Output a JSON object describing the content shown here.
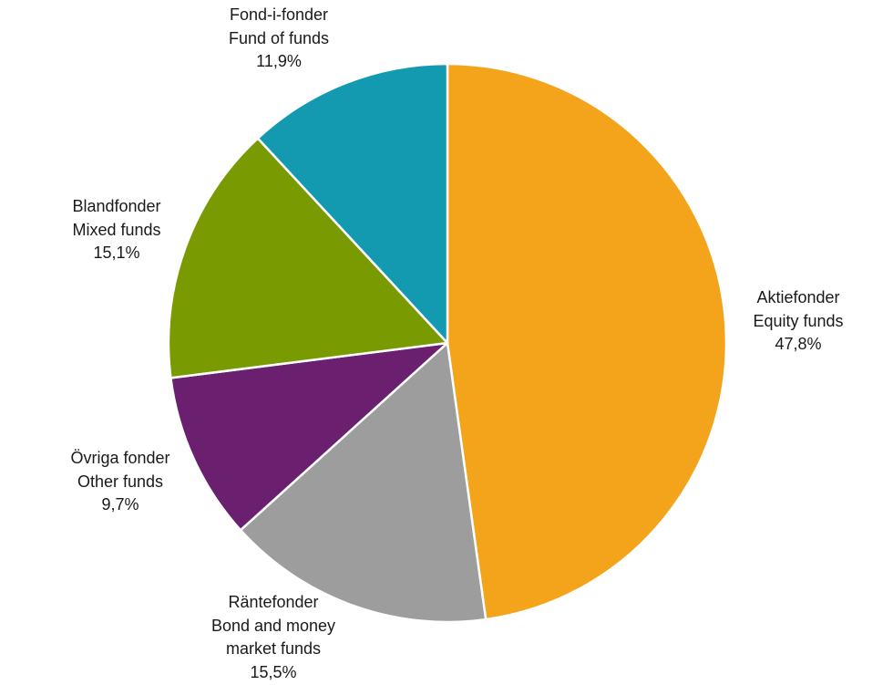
{
  "chart_data": {
    "type": "pie",
    "start_angle_deg": 0,
    "direction": "clockwise",
    "legend": "none",
    "slices": [
      {
        "key": "equity",
        "label_sv": "Aktiefonder",
        "label_en": "Equity funds",
        "value": 47.8,
        "value_label": "47,8%",
        "color": "#F4A41B"
      },
      {
        "key": "bond",
        "label_sv": "Räntefonder",
        "label_en": "Bond and money market funds",
        "label_en_line1": "Bond and money",
        "label_en_line2": "market funds",
        "value": 15.5,
        "value_label": "15,5%",
        "color": "#9D9D9D"
      },
      {
        "key": "other",
        "label_sv": "Övriga fonder",
        "label_en": "Other funds",
        "value": 9.7,
        "value_label": "9,7%",
        "color": "#6A1F6F"
      },
      {
        "key": "mixed",
        "label_sv": "Blandfonder",
        "label_en": "Mixed funds",
        "value": 15.1,
        "value_label": "15,1%",
        "color": "#7A9A01"
      },
      {
        "key": "fof",
        "label_sv": "Fond-i-fonder",
        "label_en": "Fund of funds",
        "value": 11.9,
        "value_label": "11,9%",
        "color": "#139AB0"
      }
    ]
  }
}
